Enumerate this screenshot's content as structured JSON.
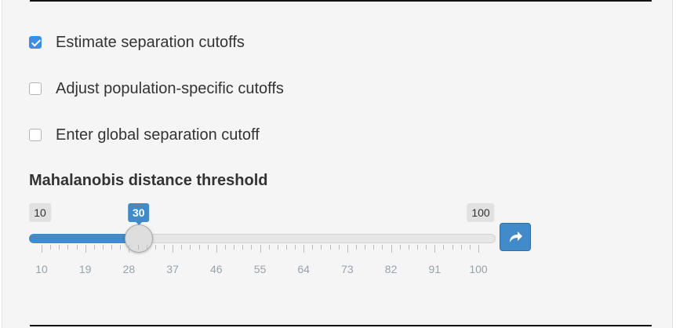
{
  "options": [
    {
      "label": "Estimate separation cutoffs",
      "checked": true
    },
    {
      "label": "Adjust population-specific cutoffs",
      "checked": false
    },
    {
      "label": "Enter global separation cutoff",
      "checked": false
    }
  ],
  "slider": {
    "title": "Mahalanobis distance threshold",
    "min_label": "10",
    "max_label": "100",
    "value_label": "30",
    "min": 10,
    "max": 100,
    "value": 30,
    "tick_labels": [
      "10",
      "19",
      "28",
      "37",
      "46",
      "55",
      "64",
      "73",
      "82",
      "91",
      "100"
    ]
  },
  "icons": {
    "play_button": "share-arrow-icon"
  },
  "colors": {
    "accent": "#428bca",
    "checkbox_checked": "#3a8ee6"
  }
}
